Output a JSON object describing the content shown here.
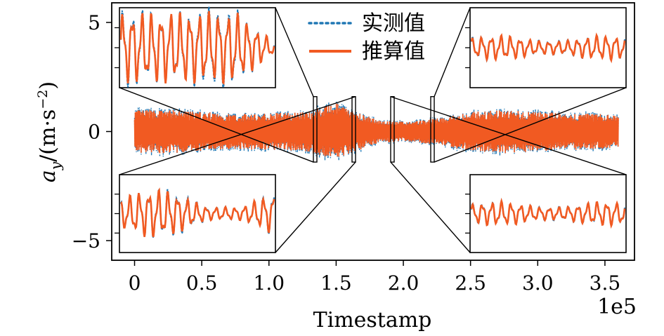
{
  "chart_data": {
    "type": "line",
    "title": "",
    "xlabel": "Timestamp",
    "ylabel": "a_y/(m·s⁻²)",
    "ylabel_parts": {
      "symbol": "a",
      "subscript": "y",
      "unit_prefix": "/(m·s",
      "unit_exp": "−2",
      "unit_suffix": ")"
    },
    "x_offset_label": "1e5",
    "xlim": [
      -0.17,
      3.72
    ],
    "ylim": [
      -5.9,
      5.9
    ],
    "x_ticks": [
      0,
      0.5,
      1.0,
      1.5,
      2.0,
      2.5,
      3.0,
      3.5
    ],
    "x_tick_labels": [
      "0",
      "0.5",
      "1.0",
      "1.5",
      "2.0",
      "2.5",
      "3.0",
      "3.5"
    ],
    "y_ticks": [
      5,
      0,
      -5
    ],
    "y_tick_labels": [
      "5",
      "0",
      "−5"
    ],
    "grid": false,
    "legend": "top-center",
    "series": [
      {
        "name": "实测值",
        "style": "dotted",
        "color": "#1f77b4"
      },
      {
        "name": "推算值",
        "style": "solid",
        "color": "#f15a22"
      }
    ],
    "signal_envelope": {
      "x": [
        0,
        0.25,
        0.5,
        0.75,
        1.0,
        1.25,
        1.5,
        1.65,
        1.8,
        2.0,
        2.25,
        2.5,
        2.75,
        3.0,
        3.25,
        3.5,
        3.6
      ],
      "amplitude": [
        1.0,
        1.0,
        0.9,
        0.8,
        0.85,
        0.9,
        1.3,
        0.9,
        0.55,
        0.45,
        0.6,
        0.9,
        1.0,
        0.9,
        0.85,
        0.8,
        0.7
      ]
    },
    "zoom_regions": [
      {
        "name": "top-left",
        "x_range": [
          1.36,
          1.37
        ],
        "y_range": [
          -1.4,
          1.6
        ]
      },
      {
        "name": "bottom-left",
        "x_range": [
          1.65,
          1.66
        ],
        "y_range": [
          -1.4,
          1.6
        ]
      },
      {
        "name": "bottom-right",
        "x_range": [
          1.93,
          1.94
        ],
        "y_range": [
          -1.4,
          1.6
        ]
      },
      {
        "name": "top-right",
        "x_range": [
          2.25,
          2.26
        ],
        "y_range": [
          -1.4,
          1.6
        ]
      }
    ]
  },
  "colors": {
    "measured": "#1f77b4",
    "estimated": "#f15a22",
    "axes": "#000000"
  }
}
